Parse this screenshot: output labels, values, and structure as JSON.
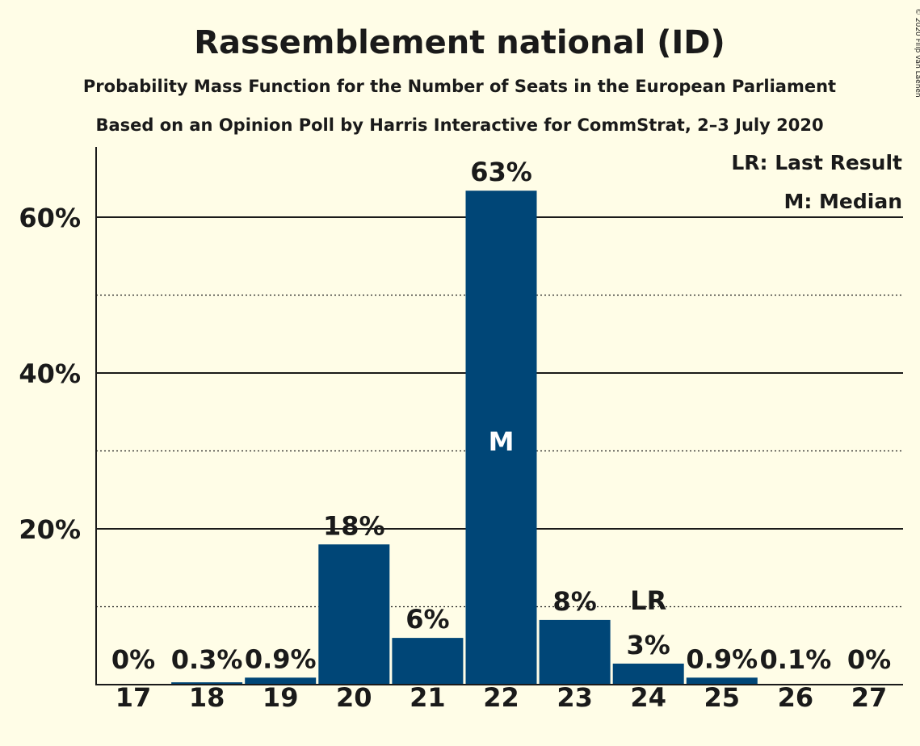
{
  "copyright": "© 2020 Filip van Laenen",
  "colors": {
    "background": "#fffde7",
    "bar": "#004677",
    "text": "#1a1a1a",
    "median_label": "#ffffff"
  },
  "chart_data": {
    "type": "bar",
    "title": "Rassemblement national (ID)",
    "subtitle": "Probability Mass Function for the Number of Seats in the European Parliament",
    "subtitle2": "Based on an Opinion Poll by Harris Interactive for CommStrat, 2–3 July 2020",
    "xlabel": "",
    "ylabel": "",
    "categories": [
      "17",
      "18",
      "19",
      "20",
      "21",
      "22",
      "23",
      "24",
      "25",
      "26",
      "27"
    ],
    "values": [
      0,
      0.3,
      0.9,
      18,
      6,
      63.4,
      8.3,
      2.7,
      0.9,
      0.1,
      0
    ],
    "value_labels": [
      "0%",
      "0.3%",
      "0.9%",
      "18%",
      "6%",
      "63%",
      "8%",
      "3%",
      "0.9%",
      "0.1%",
      "0%"
    ],
    "ylim": [
      0,
      69
    ],
    "yticks": [
      20,
      40,
      60
    ],
    "ytick_labels": [
      "20%",
      "40%",
      "60%"
    ],
    "minor_gridlines": [
      10,
      30,
      50
    ],
    "grid": true,
    "median_category": "22",
    "median_marker": "M",
    "last_result_category": "24",
    "last_result_marker": "LR",
    "legend": [
      "LR: Last Result",
      "M: Median"
    ],
    "legend_position": "top-right"
  }
}
